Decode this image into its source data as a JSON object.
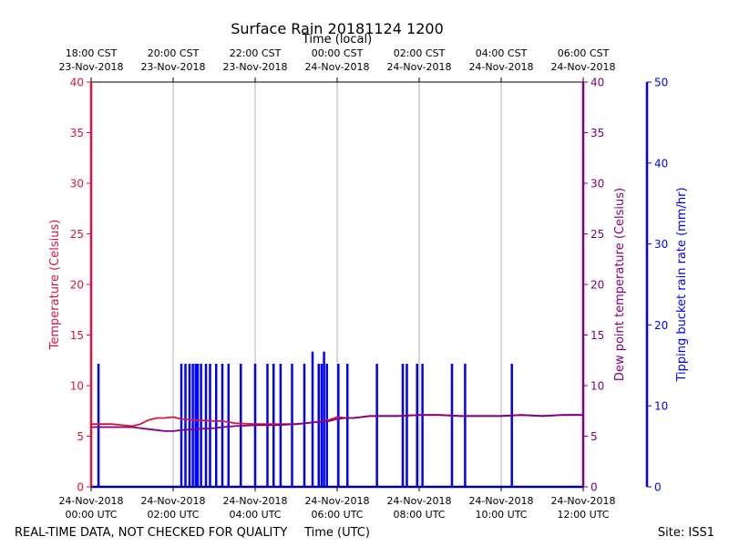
{
  "chart_data": {
    "type": "line",
    "title": "Surface Rain 20181124 1200",
    "top_axis_label": "Time (local)",
    "xlabel": "Time (UTC)",
    "ylabel_left": "Temperature (Celsius)",
    "ylabel_right": "Dew point temperature (Celsius)",
    "ylabel_far_right": "Tipping bucket rain rate (mm/hr)",
    "footer_left": "REAL-TIME DATA, NOT CHECKED FOR QUALITY",
    "footer_right": "Site: ISS1",
    "xlim": [
      0,
      12
    ],
    "ylim_left": [
      0,
      40
    ],
    "ylim_right": [
      0,
      40
    ],
    "ylim_rain": [
      0,
      50
    ],
    "grid_vertical": true,
    "x_ticks_bottom": [
      {
        "x": 0,
        "line1": "24-Nov-2018",
        "line2": "00:00 UTC"
      },
      {
        "x": 2,
        "line1": "24-Nov-2018",
        "line2": "02:00 UTC"
      },
      {
        "x": 4,
        "line1": "24-Nov-2018",
        "line2": "04:00 UTC"
      },
      {
        "x": 6,
        "line1": "24-Nov-2018",
        "line2": "06:00 UTC"
      },
      {
        "x": 8,
        "line1": "24-Nov-2018",
        "line2": "08:00 UTC"
      },
      {
        "x": 10,
        "line1": "24-Nov-2018",
        "line2": "10:00 UTC"
      },
      {
        "x": 12,
        "line1": "24-Nov-2018",
        "line2": "12:00 UTC"
      }
    ],
    "x_ticks_top": [
      {
        "x": 0,
        "line1": "18:00 CST",
        "line2": "23-Nov-2018"
      },
      {
        "x": 2,
        "line1": "20:00 CST",
        "line2": "23-Nov-2018"
      },
      {
        "x": 4,
        "line1": "22:00 CST",
        "line2": "23-Nov-2018"
      },
      {
        "x": 6,
        "line1": "00:00 CST",
        "line2": "24-Nov-2018"
      },
      {
        "x": 8,
        "line1": "02:00 CST",
        "line2": "24-Nov-2018"
      },
      {
        "x": 10,
        "line1": "04:00 CST",
        "line2": "24-Nov-2018"
      },
      {
        "x": 12,
        "line1": "06:00 CST",
        "line2": "24-Nov-2018"
      }
    ],
    "y_ticks_left": [
      0,
      5,
      10,
      15,
      20,
      25,
      30,
      35,
      40
    ],
    "y_ticks_right": [
      0,
      5,
      10,
      15,
      20,
      25,
      30,
      35,
      40
    ],
    "y_ticks_rain": [
      0,
      10,
      20,
      30,
      40,
      50
    ],
    "colors": {
      "temperature": "#dc143c",
      "dewpoint": "#800080",
      "rain": "#0000ff",
      "grid": "#b0b0b0",
      "frame": "#000000"
    },
    "series": [
      {
        "name": "Temperature",
        "axis": "left",
        "x": [
          0,
          0.5,
          1.0,
          1.2,
          1.4,
          1.6,
          1.8,
          2.0,
          2.2,
          2.5,
          3.0,
          3.2,
          3.5,
          4.0,
          4.5,
          5.0,
          5.5,
          5.8,
          6.0,
          6.2,
          6.4,
          6.6,
          6.8,
          7.0,
          7.5,
          8.0,
          8.5,
          9.0,
          9.5,
          10.0,
          10.5,
          11.0,
          11.5,
          12.0
        ],
        "values": [
          6.2,
          6.2,
          6.0,
          6.2,
          6.6,
          6.8,
          6.8,
          6.9,
          6.7,
          6.6,
          6.5,
          6.5,
          6.3,
          6.2,
          6.2,
          6.2,
          6.4,
          6.6,
          6.9,
          6.8,
          6.8,
          6.9,
          7.0,
          7.0,
          7.0,
          7.1,
          7.1,
          7.0,
          7.0,
          7.0,
          7.1,
          7.0,
          7.1,
          7.1
        ]
      },
      {
        "name": "Dew point",
        "axis": "right",
        "x": [
          0,
          0.5,
          1.0,
          1.2,
          1.4,
          1.6,
          1.8,
          2.0,
          2.2,
          2.5,
          3.0,
          3.2,
          3.5,
          4.0,
          4.5,
          5.0,
          5.5,
          5.8,
          6.0,
          6.2,
          6.4,
          6.6,
          6.8,
          7.0,
          7.5,
          8.0,
          8.5,
          9.0,
          9.5,
          10.0,
          10.5,
          11.0,
          11.5,
          12.0
        ],
        "values": [
          5.9,
          5.9,
          5.9,
          5.8,
          5.7,
          5.6,
          5.5,
          5.5,
          5.6,
          5.7,
          5.8,
          5.9,
          6.0,
          6.1,
          6.1,
          6.2,
          6.4,
          6.5,
          6.7,
          6.8,
          6.8,
          6.9,
          7.0,
          7.0,
          7.0,
          7.1,
          7.1,
          7.0,
          7.0,
          7.0,
          7.1,
          7.0,
          7.1,
          7.1
        ]
      },
      {
        "name": "Rain rate",
        "axis": "rain",
        "type": "spikes",
        "x": [
          0.18,
          2.2,
          2.3,
          2.4,
          2.48,
          2.55,
          2.6,
          2.68,
          2.8,
          2.9,
          3.05,
          3.2,
          3.35,
          3.65,
          4.0,
          4.3,
          4.45,
          4.62,
          4.9,
          5.2,
          5.4,
          5.55,
          5.62,
          5.68,
          5.75,
          6.03,
          6.25,
          6.97,
          7.6,
          7.7,
          7.95,
          8.08,
          8.8,
          9.12,
          10.26
        ],
        "values": [
          15.2,
          15.2,
          15.2,
          15.2,
          15.2,
          15.2,
          15.2,
          15.2,
          15.2,
          15.2,
          15.2,
          15.2,
          15.2,
          15.2,
          15.2,
          15.2,
          15.2,
          15.2,
          15.2,
          15.2,
          16.7,
          15.2,
          15.2,
          16.7,
          15.2,
          15.2,
          15.2,
          15.2,
          15.2,
          15.2,
          15.2,
          15.2,
          15.2,
          15.2,
          15.2
        ]
      }
    ]
  }
}
